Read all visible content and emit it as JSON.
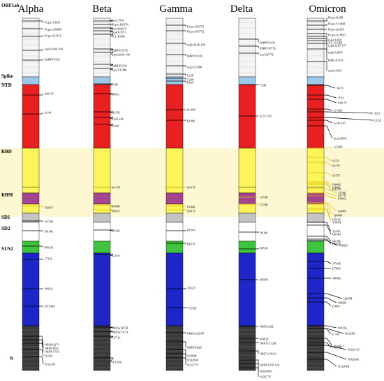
{
  "colors": {
    "rbd_band": "#fdf7d2",
    "orf1ab": "#f4f4f4",
    "spike_top": "#9ec8e8",
    "ntd": "#e82020",
    "rbd": "#fbf55a",
    "rbm": "#a5448f",
    "sd": "#c4c4c4",
    "s1s2": "#3ec43e",
    "s2": "#1f26c8",
    "tail": "#3a3a3a",
    "highlight_line": "#e0c000",
    "line": "#000000"
  },
  "region_labels": [
    "ORF1ab",
    "Spike",
    "NTD",
    "RBD",
    "RBM",
    "SD1",
    "SD2",
    "S1/S2",
    "N"
  ],
  "variants": [
    {
      "name": "Alpha",
      "mutations": [
        "PLpro:T183I",
        "PLpro:A890D",
        "PLpro:I1412T",
        "nsp6:Δ106-108",
        "RdRP:P553L",
        "Δ69-70",
        "Δ144",
        "N501Y",
        "A570D",
        "D614G",
        "P681H",
        "T716I",
        "S982A",
        "D1118H",
        "ORF8:Q27*",
        "ORF8:R52I",
        "ORF8:Y73C",
        "N:D3L",
        "N:S235F"
      ]
    },
    {
      "name": "Beta",
      "mutations": [
        "nsp2:T85I",
        "PLpro:K837N",
        "nsp4:R261Y",
        "nsp4:K357I",
        "3CL:K90R",
        "RdRP:D153Y",
        "nsp6:Δ106-108",
        "RdRP:P323L",
        "nsp13:T588I",
        "L18F",
        "D80A",
        "D215G",
        "Δ242-244",
        "R246I",
        "K417N",
        "E484K",
        "N501Y",
        "D614G",
        "A701V",
        "ORF3a:Q57H",
        "ORF3a:S171L",
        "E:P71L",
        "N:T205I"
      ]
    },
    {
      "name": "Gamma",
      "mutations": [
        "PLpro:K837N",
        "PLpro:K977Q",
        "nsp6:Δ106-108",
        "RdRP:P323L",
        "nsp13:E588I",
        "L18F",
        "T20N",
        "P26S",
        "D138Y",
        "R190S",
        "K417T",
        "E484K",
        "N501Y",
        "D614G",
        "H655Y",
        "T1027I",
        "V1176F",
        "ORF3a:S253P",
        "ORF8:E92K",
        "N:P80R",
        "N:R203K",
        "N:S377Y"
      ]
    },
    {
      "name": "Delta",
      "mutations": [
        "RdRP:P323L",
        "RdRP:G671S",
        "nsp13:P77L",
        "T19R",
        "Δ157-158",
        "L452R",
        "T478K",
        "D614G",
        "P681R",
        "D950N",
        "ORF3:S26L",
        "M:I82T",
        "ORF7a:T120I",
        "ORF7a:V82A",
        "ORF8:Δ119-120",
        "N:R203M",
        "N:D377Y"
      ]
    },
    {
      "name": "Omicron",
      "mutations": [
        "PLpro:K38R",
        "PLpro:V1069I",
        "PLpro:Δ1265",
        "PLpro:A1892T",
        "nsp4:T492I",
        "3CL:P132H",
        "nsp6:Δ105-107",
        "nsp6:A189V",
        "RdRp:P323L",
        "nsp14:I42V",
        "A67V",
        "T95I",
        "Δ69-70",
        "G142D",
        "Δ211",
        "L212I",
        "Δ143-145",
        "ins214EPE",
        "G339D",
        "S371L",
        "S373P",
        "S375F",
        "N440K",
        "G446S",
        "K417N",
        "T478K",
        "E484A",
        "S477N",
        "G496S",
        "Q498R",
        "N501Y",
        "Y505H",
        "T547K",
        "D614G",
        "H655Y",
        "N679K",
        "P681H",
        "N764K",
        "D796Y",
        "N856K",
        "Q954H",
        "N969K",
        "L981F",
        "E:T9I",
        "M:D3G",
        "M:Q19E",
        "M:A63T",
        "N:P13L",
        "N:Δ31-33",
        "N:R203K",
        "N:G204R"
      ]
    }
  ]
}
